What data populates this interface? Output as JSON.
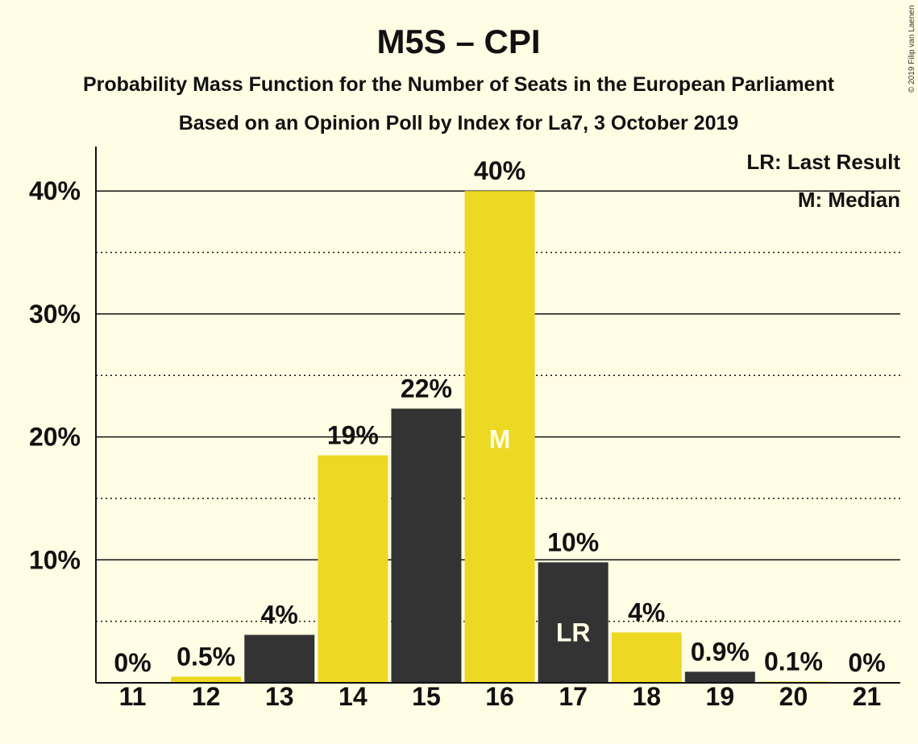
{
  "colors": {
    "background": "#FFFDE4",
    "bar_dark": "#333333",
    "bar_yellow": "#EDD823",
    "text": "#111111",
    "inner_label": "#FFFDE4"
  },
  "chart_data": {
    "type": "bar",
    "title": "M5S – CPI",
    "subtitle": "Probability Mass Function for the Number of Seats in the European Parliament",
    "subtitle2": "Based on an Opinion Poll by Index for La7, 3 October 2019",
    "copyright": "© 2019 Filip van Laenen",
    "categories": [
      "11",
      "12",
      "13",
      "14",
      "15",
      "16",
      "17",
      "18",
      "19",
      "20",
      "21"
    ],
    "values": [
      0,
      0.5,
      3.9,
      18.5,
      22.3,
      40.0,
      9.8,
      4.1,
      0.9,
      0.1,
      0
    ],
    "data_labels": [
      "0%",
      "0.5%",
      "4%",
      "19%",
      "22%",
      "40%",
      "10%",
      "4%",
      "0.9%",
      "0.1%",
      "0%"
    ],
    "bar_colors": [
      "yellow",
      "yellow",
      "dark",
      "yellow",
      "dark",
      "yellow",
      "dark",
      "yellow",
      "dark",
      "yellow",
      "dark"
    ],
    "ylim": [
      0,
      43
    ],
    "yticks": [
      10,
      20,
      30,
      40
    ],
    "ytick_labels": [
      "10%",
      "20%",
      "30%",
      "40%"
    ],
    "minor_gridlines": [
      5,
      15,
      25,
      35
    ],
    "grid": true,
    "median": {
      "category": "16",
      "label": "M"
    },
    "last_result": {
      "category": "17",
      "label": "LR"
    },
    "legend": {
      "placement": "top-right",
      "entries": [
        "LR: Last Result",
        "M: Median"
      ]
    }
  }
}
